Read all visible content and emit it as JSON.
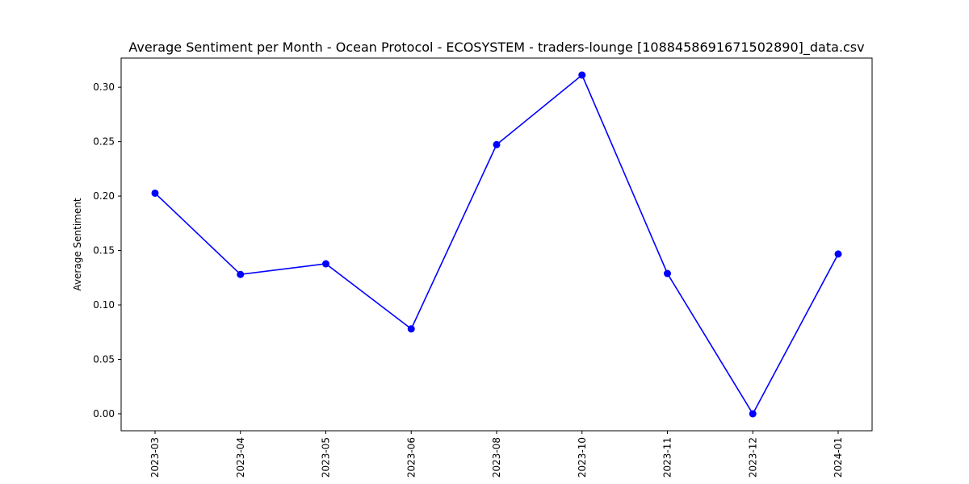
{
  "chart_data": {
    "type": "line",
    "title": "Average Sentiment per Month - Ocean Protocol - ECOSYSTEM - traders-lounge [1088458691671502890]_data.csv",
    "xlabel": "",
    "ylabel": "Average Sentiment",
    "categories": [
      "2023-03",
      "2023-04",
      "2023-05",
      "2023-06",
      "2023-08",
      "2023-10",
      "2023-11",
      "2023-12",
      "2024-01"
    ],
    "series": [
      {
        "values": [
          0.2027,
          0.128,
          0.1378,
          0.078,
          0.2473,
          0.3112,
          0.1289,
          0.0,
          0.1468
        ],
        "color": "#0000ff",
        "marker": "circle"
      }
    ],
    "ylim": [
      -0.0156,
      0.3268
    ],
    "yticks": [
      0.0,
      0.05,
      0.1,
      0.15,
      0.2,
      0.25,
      0.3
    ],
    "ytick_labels": [
      "0.00",
      "0.05",
      "0.10",
      "0.15",
      "0.20",
      "0.25",
      "0.30"
    ],
    "grid": false,
    "legend": "none"
  }
}
